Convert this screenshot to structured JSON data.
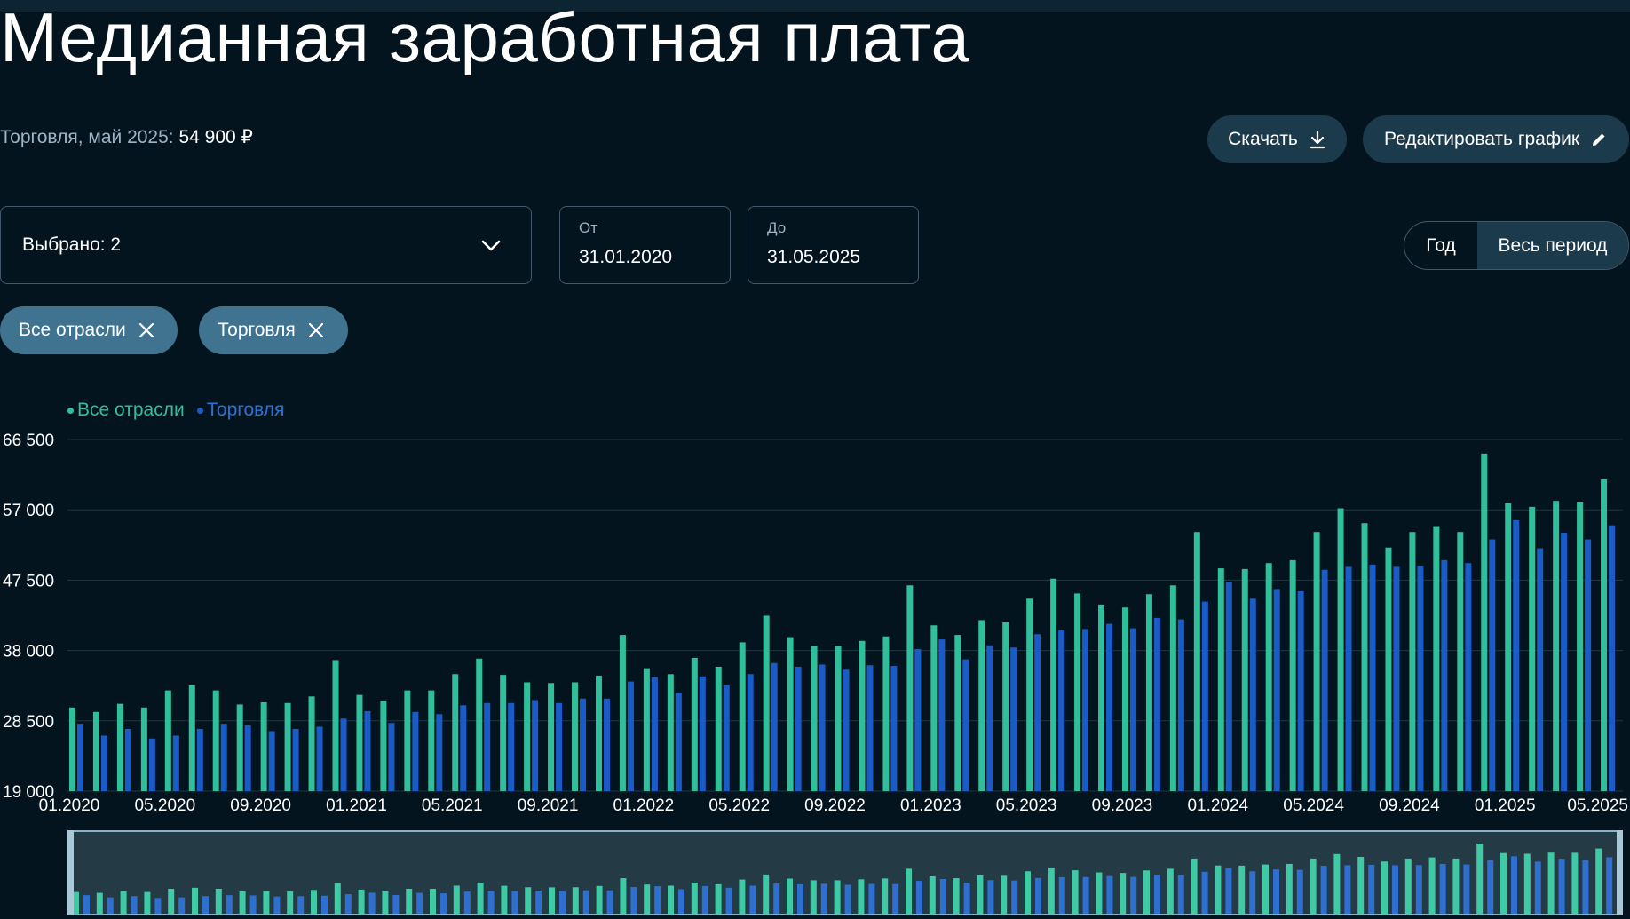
{
  "page": {
    "title": "Медианная заработная плата",
    "summary_label": "Торговля, май 2025:",
    "summary_value": "54 900 ₽"
  },
  "toolbar": {
    "download_label": "Скачать",
    "download_icon": "download-icon",
    "edit_label": "Редактировать график",
    "edit_icon": "pencil-icon"
  },
  "filters": {
    "select_label": "Выбрано: 2",
    "from_label": "От",
    "from_value": "31.01.2020",
    "to_label": "До",
    "to_value": "31.05.2025",
    "period_options": [
      "Год",
      "Весь период"
    ],
    "period_selected": "Весь период",
    "chips": [
      "Все отрасли",
      "Торговля"
    ]
  },
  "colors": {
    "background": "#04141e",
    "all_industries": "#2fbf9a",
    "trade": "#1a5cc7",
    "grid": "#1f3442",
    "button": "#1b3a4c",
    "chip": "#3f7390"
  },
  "chart_data": {
    "type": "bar",
    "title": "",
    "xlabel": "",
    "ylabel": "",
    "ylim": [
      19000,
      66500
    ],
    "yticks": [
      19000,
      28500,
      38000,
      47500,
      57000,
      66500
    ],
    "ytick_labels": [
      "19 000",
      "28 500",
      "38 000",
      "47 500",
      "57 000",
      "66 500"
    ],
    "xtick_labels": [
      "01.2020",
      "05.2020",
      "09.2020",
      "01.2021",
      "05.2021",
      "09.2021",
      "01.2022",
      "05.2022",
      "09.2022",
      "01.2023",
      "05.2023",
      "09.2023",
      "01.2024",
      "05.2024",
      "09.2024",
      "01.2025",
      "05.2025"
    ],
    "grid": true,
    "legend_position": "top-left",
    "categories": [
      "01.2020",
      "02.2020",
      "03.2020",
      "04.2020",
      "05.2020",
      "06.2020",
      "07.2020",
      "08.2020",
      "09.2020",
      "10.2020",
      "11.2020",
      "12.2020",
      "01.2021",
      "02.2021",
      "03.2021",
      "04.2021",
      "05.2021",
      "06.2021",
      "07.2021",
      "08.2021",
      "09.2021",
      "10.2021",
      "11.2021",
      "12.2021",
      "01.2022",
      "02.2022",
      "03.2022",
      "04.2022",
      "05.2022",
      "06.2022",
      "07.2022",
      "08.2022",
      "09.2022",
      "10.2022",
      "11.2022",
      "12.2022",
      "01.2023",
      "02.2023",
      "03.2023",
      "04.2023",
      "05.2023",
      "06.2023",
      "07.2023",
      "08.2023",
      "09.2023",
      "10.2023",
      "11.2023",
      "12.2023",
      "01.2024",
      "02.2024",
      "03.2024",
      "04.2024",
      "05.2024",
      "06.2024",
      "07.2024",
      "08.2024",
      "09.2024",
      "10.2024",
      "11.2024",
      "12.2024",
      "01.2025",
      "02.2025",
      "03.2025",
      "04.2025",
      "05.2025"
    ],
    "series": [
      {
        "name": "Все отрасли",
        "color": "#2fbf9a",
        "values": [
          30300,
          29700,
          30800,
          30300,
          32600,
          33300,
          32600,
          30700,
          31000,
          30900,
          31800,
          36700,
          32000,
          31200,
          32600,
          32600,
          34800,
          36900,
          34700,
          33700,
          33600,
          33700,
          34600,
          40100,
          35600,
          34800,
          37000,
          35800,
          39100,
          42700,
          39800,
          38600,
          38600,
          39300,
          39900,
          46800,
          41400,
          40100,
          42100,
          41800,
          45000,
          47700,
          45700,
          44200,
          43800,
          45600,
          46800,
          54000,
          49100,
          49000,
          49800,
          50200,
          54000,
          57200,
          55200,
          51900,
          54000,
          54800,
          54000,
          64600,
          57900,
          57400,
          58200,
          58100,
          61100
        ]
      },
      {
        "name": "Торговля",
        "color": "#1a5cc7",
        "values": [
          28100,
          26500,
          27400,
          26100,
          26500,
          27400,
          28100,
          27900,
          27100,
          27400,
          27700,
          28800,
          29800,
          28200,
          29700,
          29400,
          30600,
          30900,
          30900,
          31300,
          30900,
          31500,
          31500,
          33800,
          34400,
          32300,
          34500,
          33300,
          34800,
          36300,
          35800,
          36100,
          35400,
          36000,
          35900,
          38200,
          39500,
          36800,
          38700,
          38400,
          40200,
          40800,
          40900,
          41600,
          41000,
          42400,
          42200,
          44600,
          47300,
          45000,
          46300,
          46000,
          48900,
          49300,
          49600,
          49300,
          49400,
          50200,
          49800,
          53000,
          55600,
          51800,
          53900,
          53000,
          54900
        ]
      }
    ]
  }
}
